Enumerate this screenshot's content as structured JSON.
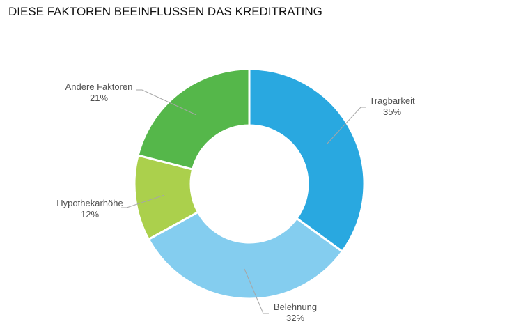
{
  "chart_data": {
    "type": "pie",
    "variant": "donut",
    "title": "DIESE FAKTOREN BEEINFLUSSEN DAS KREDITRATING",
    "slices": [
      {
        "label": "Tragbarkeit",
        "value": 35,
        "value_label": "35%",
        "color": "#29a8e0"
      },
      {
        "label": "Belehnung",
        "value": 32,
        "value_label": "32%",
        "color": "#84cdef"
      },
      {
        "label": "Hypothekarhöhe",
        "value": 12,
        "value_label": "12%",
        "color": "#abd04c"
      },
      {
        "label": "Andere Faktoren",
        "value": 21,
        "value_label": "21%",
        "color": "#55b74a"
      }
    ],
    "start_angle": "12 o'clock",
    "direction": "clockwise",
    "legend": "none"
  }
}
